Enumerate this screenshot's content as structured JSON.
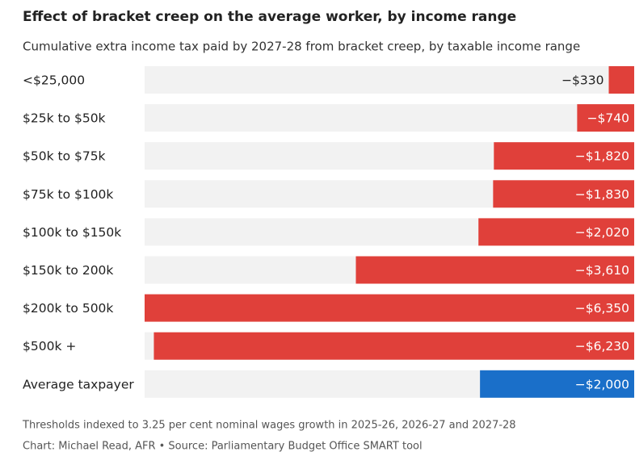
{
  "chart_data": {
    "type": "hbar",
    "title": "Effect of bracket creep on the average worker, by income range",
    "subtitle": "Cumulative extra income tax paid by 2027-28 from bracket creep, by taxable income range",
    "categories": [
      "<$25,000",
      "$25k to $50k",
      "$50k to $75k",
      "$75k to $100k",
      "$100k to $150k",
      "$150k to 200k",
      "$200k to 500k",
      "$500k +",
      "Average taxpayer"
    ],
    "values": [
      -330,
      -740,
      -1820,
      -1830,
      -2020,
      -3610,
      -6350,
      -6230,
      -2000
    ],
    "value_labels": [
      "−$330",
      "−$740",
      "−$1,820",
      "−$1,830",
      "−$2,020",
      "−$3,610",
      "−$6,350",
      "−$6,230",
      "−$2,000"
    ],
    "colors": [
      "#e0403a",
      "#e0403a",
      "#e0403a",
      "#e0403a",
      "#e0403a",
      "#e0403a",
      "#e0403a",
      "#e0403a",
      "#1a6fc9"
    ],
    "xlim": [
      -6350,
      0
    ],
    "note": "Thresholds indexed to 3.25 per cent nominal wages growth in 2025-26, 2026-27 and 2027-28",
    "source": "Chart: Michael Read, AFR • Source: Parliamentary Budget Office SMART tool"
  }
}
